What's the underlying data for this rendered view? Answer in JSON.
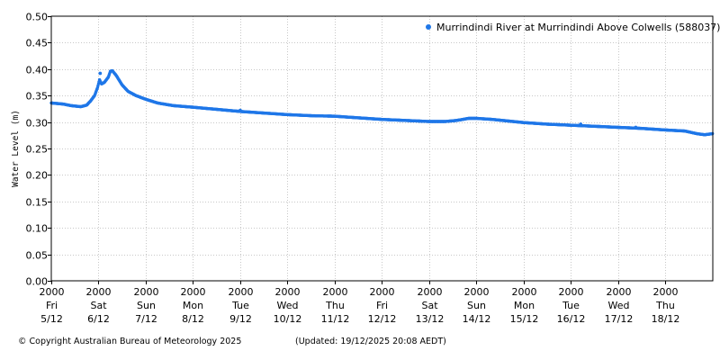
{
  "chart_data": {
    "type": "scatter",
    "title": "",
    "ylabel": "Water Level (m)",
    "xlabel": "",
    "ylim": [
      0.0,
      0.5
    ],
    "yticks": [
      "0.00",
      "0.05",
      "0.10",
      "0.15",
      "0.20",
      "0.25",
      "0.30",
      "0.35",
      "0.40",
      "0.45",
      "0.50"
    ],
    "xlim": [
      "2025-12-05 20:00",
      "2025-12-19 20:08"
    ],
    "xticks": [
      {
        "date": "2025-12-05 20:00",
        "time": "2000",
        "day": "Fri",
        "date_label": "5/12"
      },
      {
        "date": "2025-12-06 20:00",
        "time": "2000",
        "day": "Sat",
        "date_label": "6/12"
      },
      {
        "date": "2025-12-07 20:00",
        "time": "2000",
        "day": "Sun",
        "date_label": "7/12"
      },
      {
        "date": "2025-12-08 20:00",
        "time": "2000",
        "day": "Mon",
        "date_label": "8/12"
      },
      {
        "date": "2025-12-09 20:00",
        "time": "2000",
        "day": "Tue",
        "date_label": "9/12"
      },
      {
        "date": "2025-12-10 20:00",
        "time": "2000",
        "day": "Wed",
        "date_label": "10/12"
      },
      {
        "date": "2025-12-11 20:00",
        "time": "2000",
        "day": "Thu",
        "date_label": "11/12"
      },
      {
        "date": "2025-12-12 20:00",
        "time": "2000",
        "day": "Fri",
        "date_label": "12/12"
      },
      {
        "date": "2025-12-13 20:00",
        "time": "2000",
        "day": "Sat",
        "date_label": "13/12"
      },
      {
        "date": "2025-12-14 20:00",
        "time": "2000",
        "day": "Sun",
        "date_label": "14/12"
      },
      {
        "date": "2025-12-15 20:00",
        "time": "2000",
        "day": "Mon",
        "date_label": "15/12"
      },
      {
        "date": "2025-12-16 20:00",
        "time": "2000",
        "day": "Tue",
        "date_label": "16/12"
      },
      {
        "date": "2025-12-17 20:00",
        "time": "2000",
        "day": "Wed",
        "date_label": "17/12"
      },
      {
        "date": "2025-12-18 20:00",
        "time": "2000",
        "day": "Thu",
        "date_label": "18/12"
      }
    ],
    "grid": true,
    "grid_style": "dotted",
    "legend_position": "top-right",
    "series": [
      {
        "name": "Murrindindi River at Murrindindi Above Colwells (588037)",
        "color": "#1f77e8",
        "points": [
          [
            "2025-12-05 20:00",
            0.336
          ],
          [
            "2025-12-06 02:00",
            0.334
          ],
          [
            "2025-12-06 06:00",
            0.331
          ],
          [
            "2025-12-06 11:00",
            0.329
          ],
          [
            "2025-12-06 14:00",
            0.332
          ],
          [
            "2025-12-06 16:00",
            0.34
          ],
          [
            "2025-12-06 18:00",
            0.35
          ],
          [
            "2025-12-06 19:30",
            0.365
          ],
          [
            "2025-12-06 20:30",
            0.38
          ],
          [
            "2025-12-06 21:30",
            0.372
          ],
          [
            "2025-12-06 23:00",
            0.375
          ],
          [
            "2025-12-07 01:00",
            0.385
          ],
          [
            "2025-12-07 02:00",
            0.396
          ],
          [
            "2025-12-07 03:00",
            0.397
          ],
          [
            "2025-12-07 05:00",
            0.388
          ],
          [
            "2025-12-07 08:00",
            0.37
          ],
          [
            "2025-12-07 11:00",
            0.358
          ],
          [
            "2025-12-07 15:00",
            0.35
          ],
          [
            "2025-12-07 20:00",
            0.343
          ],
          [
            "2025-12-08 02:00",
            0.336
          ],
          [
            "2025-12-08 10:00",
            0.331
          ],
          [
            "2025-12-08 20:00",
            0.328
          ],
          [
            "2025-12-09 08:00",
            0.324
          ],
          [
            "2025-12-09 20:00",
            0.32
          ],
          [
            "2025-12-10 08:00",
            0.317
          ],
          [
            "2025-12-10 20:00",
            0.314
          ],
          [
            "2025-12-11 08:00",
            0.312
          ],
          [
            "2025-12-11 20:00",
            0.311
          ],
          [
            "2025-12-12 08:00",
            0.308
          ],
          [
            "2025-12-12 20:00",
            0.305
          ],
          [
            "2025-12-13 08:00",
            0.303
          ],
          [
            "2025-12-13 20:00",
            0.301
          ],
          [
            "2025-12-14 04:00",
            0.301
          ],
          [
            "2025-12-14 10:00",
            0.303
          ],
          [
            "2025-12-14 16:00",
            0.307
          ],
          [
            "2025-12-14 20:00",
            0.307
          ],
          [
            "2025-12-15 04:00",
            0.305
          ],
          [
            "2025-12-15 20:00",
            0.299
          ],
          [
            "2025-12-16 08:00",
            0.296
          ],
          [
            "2025-12-16 20:00",
            0.294
          ],
          [
            "2025-12-17 08:00",
            0.292
          ],
          [
            "2025-12-17 20:00",
            0.29
          ],
          [
            "2025-12-18 08:00",
            0.288
          ],
          [
            "2025-12-18 20:00",
            0.285
          ],
          [
            "2025-12-19 06:00",
            0.283
          ],
          [
            "2025-12-19 12:00",
            0.278
          ],
          [
            "2025-12-19 16:00",
            0.276
          ],
          [
            "2025-12-19 20:00",
            0.278
          ]
        ],
        "outliers": [
          [
            "2025-12-06 20:50",
            0.392
          ],
          [
            "2025-12-09 20:00",
            0.322
          ],
          [
            "2025-12-17 01:00",
            0.296
          ],
          [
            "2025-12-18 05:00",
            0.29
          ]
        ]
      }
    ]
  },
  "footer": {
    "copyright": "© Copyright Australian Bureau of Meteorology 2025",
    "updated": "(Updated: 19/12/2025 20:08 AEDT)"
  }
}
